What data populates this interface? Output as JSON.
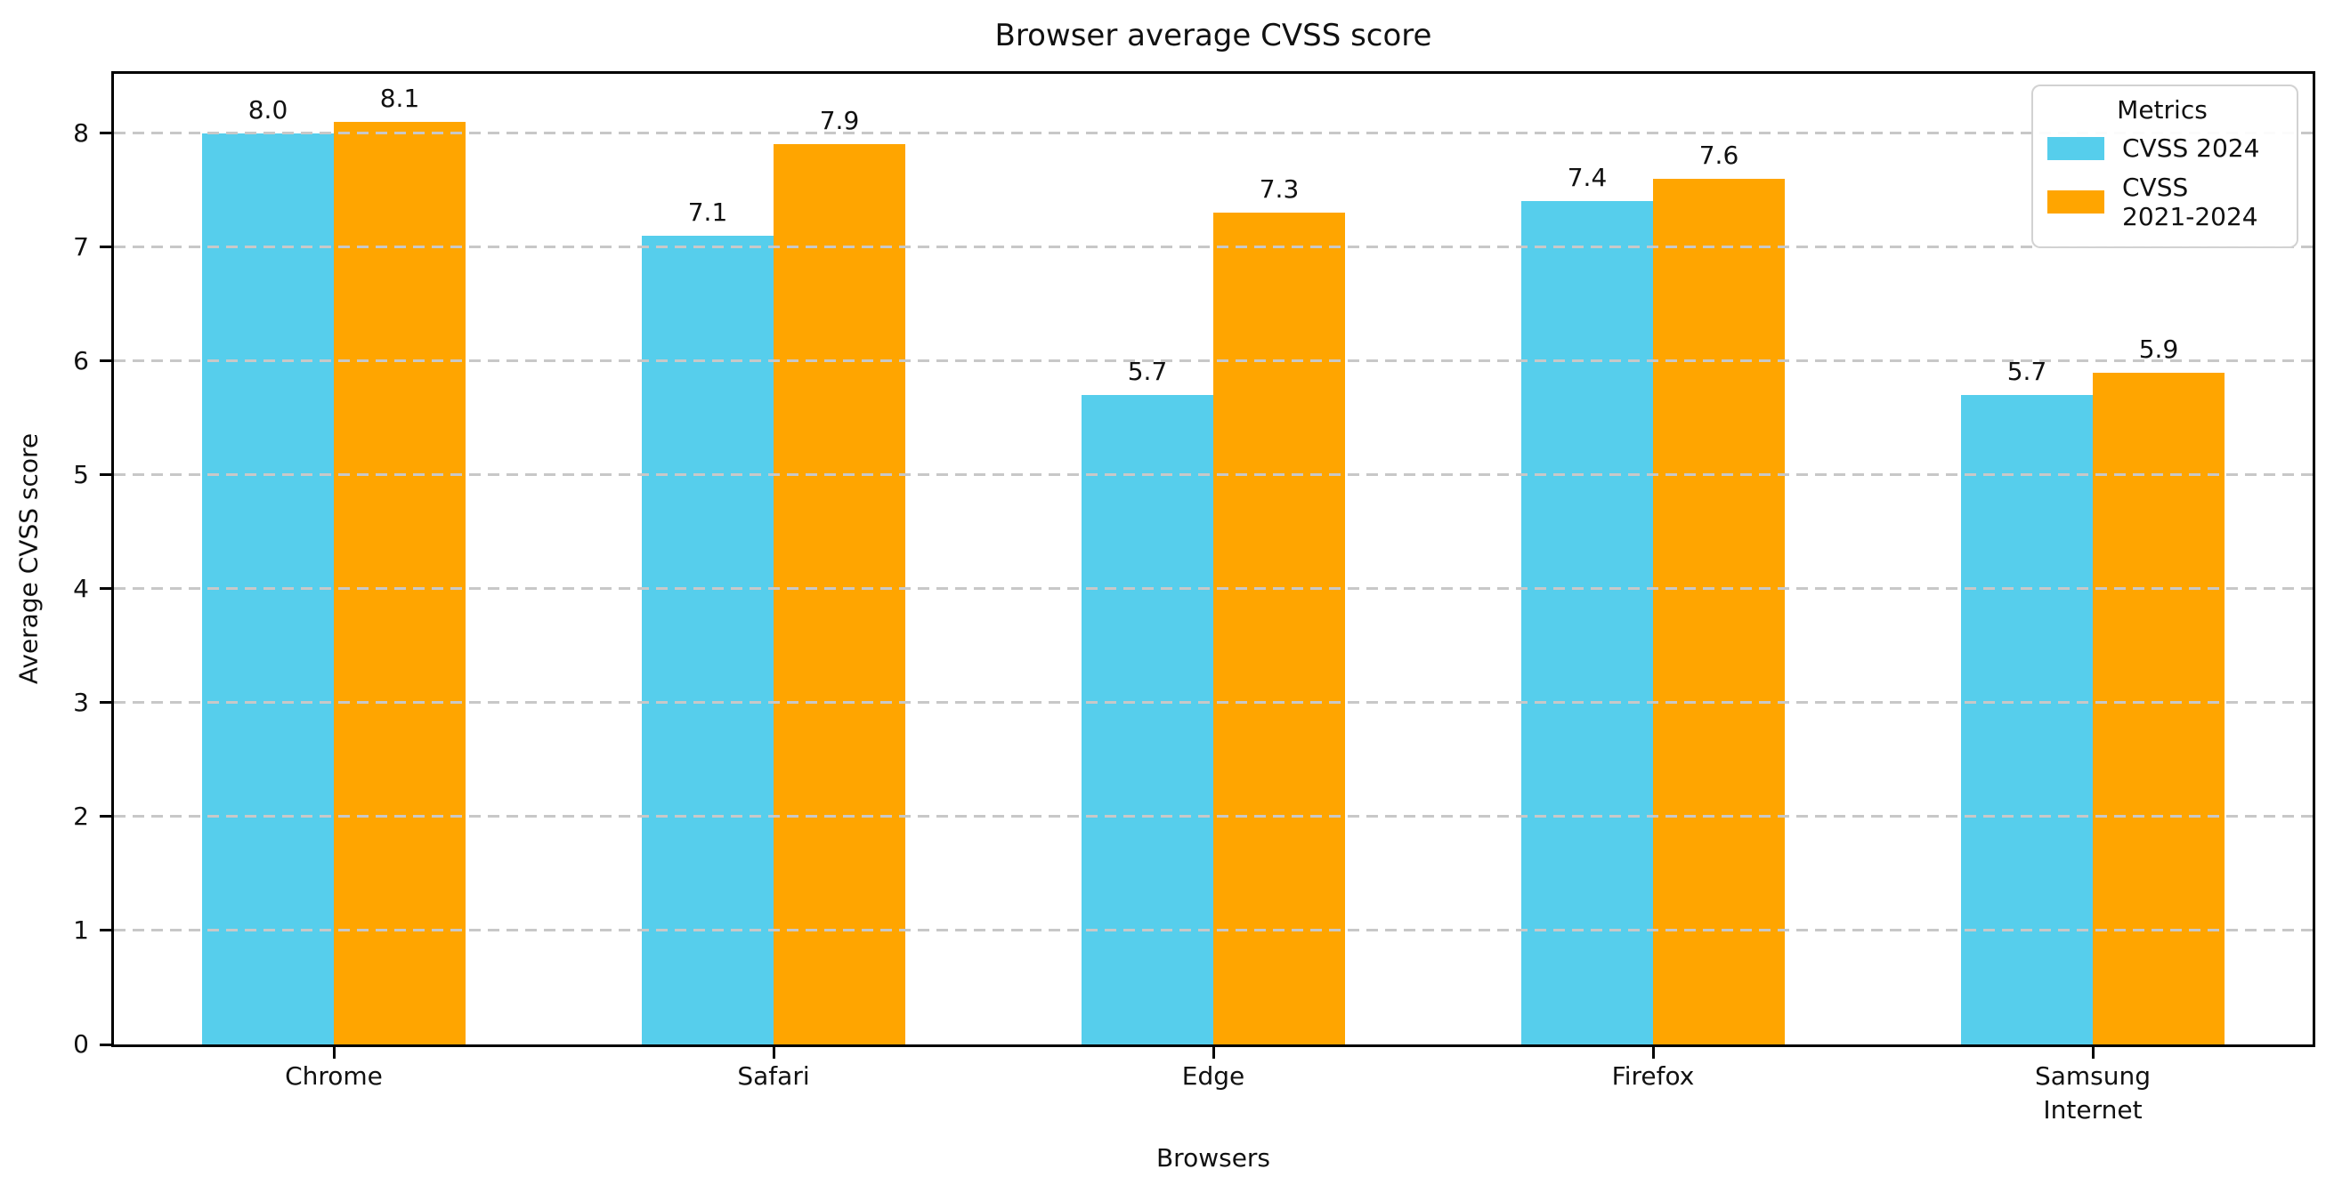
{
  "chart_data": {
    "type": "bar",
    "title": "Browser average CVSS score",
    "xlabel": "Browsers",
    "ylabel": "Average CVSS score",
    "categories": [
      "Chrome",
      "Safari",
      "Edge",
      "Firefox",
      "Samsung\nInternet"
    ],
    "series": [
      {
        "name": "CVSS 2024",
        "label": "CVSS 2024",
        "color": "#56CEEC",
        "values": [
          8.0,
          7.1,
          5.7,
          7.4,
          5.7
        ]
      },
      {
        "name": "CVSS 2021-2024",
        "label": "CVSS\n2021-2024",
        "color": "#FFA500",
        "values": [
          8.1,
          7.9,
          7.3,
          7.6,
          5.9
        ]
      }
    ],
    "value_labels": [
      [
        "8.0",
        "7.1",
        "5.7",
        "7.4",
        "5.7"
      ],
      [
        "8.1",
        "7.9",
        "7.3",
        "7.6",
        "5.9"
      ]
    ],
    "ylim": [
      0,
      8.52
    ],
    "yticks": [
      0,
      1,
      2,
      3,
      4,
      5,
      6,
      7,
      8
    ],
    "grid": {
      "axis": "y",
      "style": "dashed",
      "color": "#C8C8C8"
    },
    "legend": {
      "title": "Metrics",
      "position": "top-right"
    }
  }
}
